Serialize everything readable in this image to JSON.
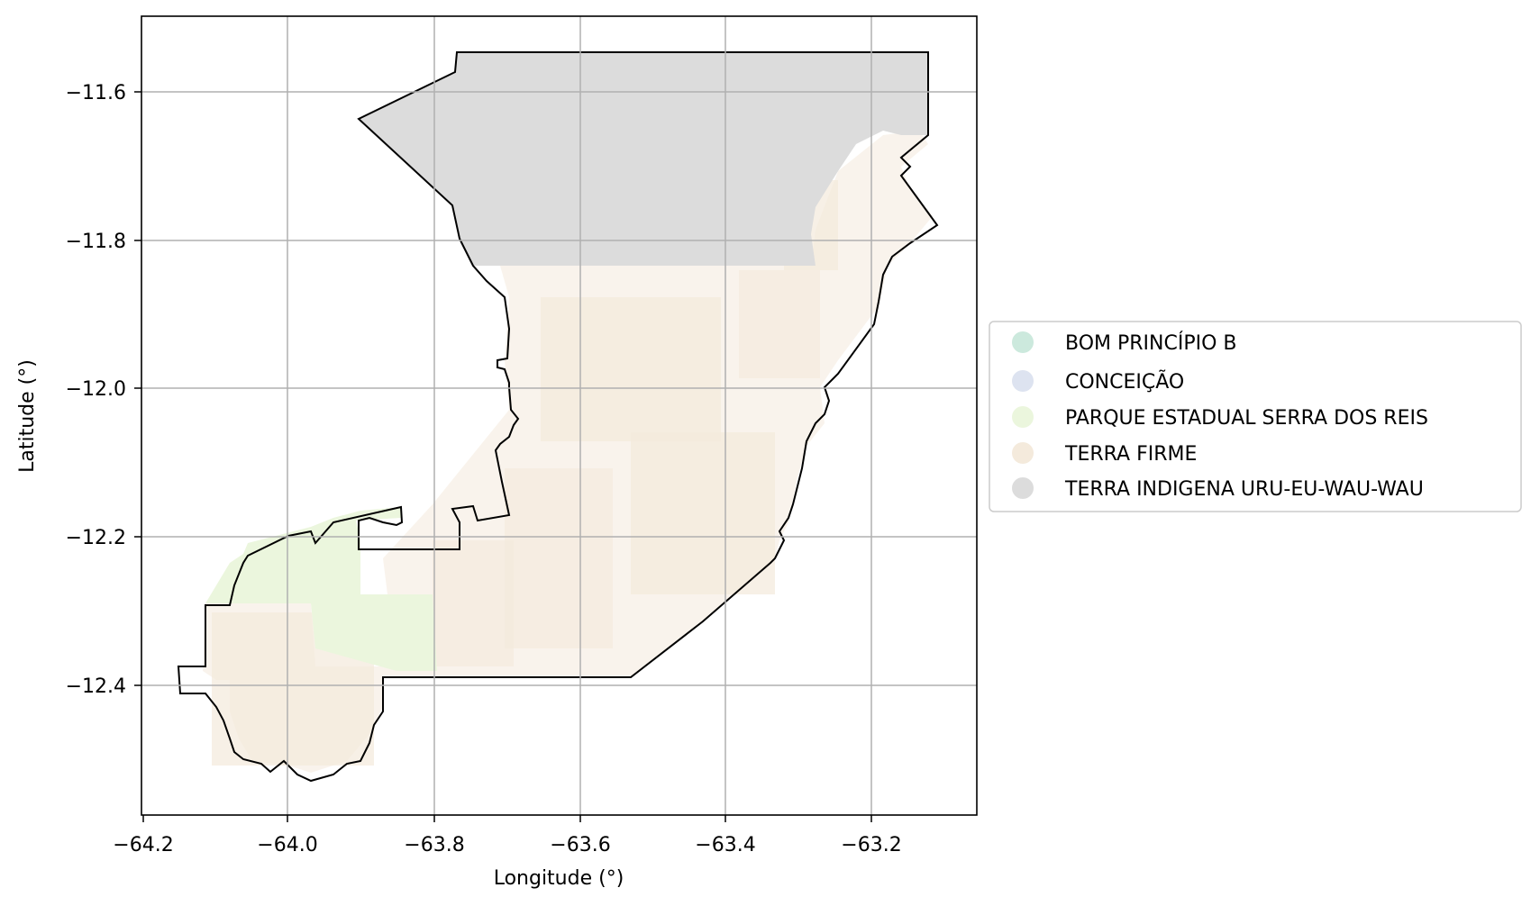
{
  "map": {
    "xlabel": "Longitude (°)",
    "ylabel": "Latitude (°)",
    "x_ticks": [
      "−64.2",
      "−64.0",
      "−63.8",
      "−63.6",
      "−63.4",
      "−63.2"
    ],
    "y_ticks": [
      "−11.6",
      "−11.8",
      "−12.0",
      "−12.2",
      "−12.4"
    ],
    "xlim": [
      -64.2,
      -63.05
    ],
    "ylim": [
      -12.58,
      -11.5
    ],
    "grid": true,
    "legend_placement": "right"
  },
  "legend": {
    "items": [
      {
        "label": "BOM PRINCÍPIO B",
        "color": "#cce9dd"
      },
      {
        "label": "CONCEIÇÃO",
        "color": "#dde3f0"
      },
      {
        "label": "PARQUE ESTADUAL SERRA DOS REIS",
        "color": "#ebf6dd"
      },
      {
        "label": "TERRA FIRME",
        "color": "#f4eadc"
      },
      {
        "label": "TERRA INDIGENA URU-EU-WAU-WAU",
        "color": "#dcdcdc"
      }
    ]
  }
}
